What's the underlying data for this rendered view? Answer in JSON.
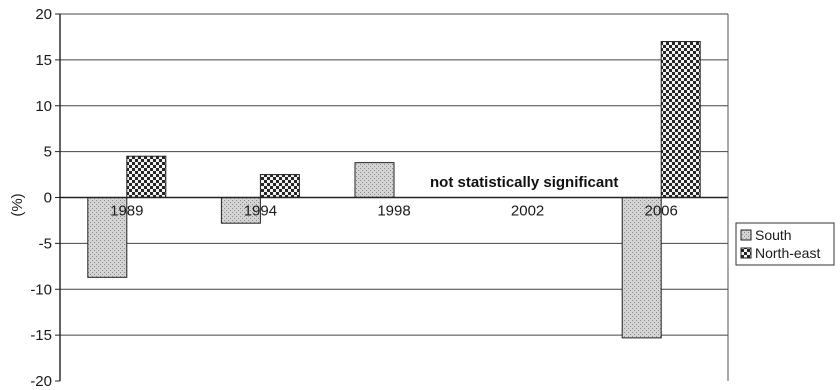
{
  "chart_data": {
    "type": "bar",
    "title": "",
    "xlabel": "",
    "ylabel": "(%)",
    "ylim": [
      -20,
      20
    ],
    "yticks": [
      -20,
      -15,
      -10,
      -5,
      0,
      5,
      10,
      15,
      20
    ],
    "grid": "horizontal",
    "legend": "right",
    "categories": [
      "1989",
      "1994",
      "1998",
      "2002",
      "2006"
    ],
    "series": [
      {
        "name": "South",
        "values": [
          -8.7,
          -2.8,
          3.8,
          null,
          -15.3
        ],
        "pattern": "light-stipple",
        "color": "#bdbdbd"
      },
      {
        "name": "North-east",
        "values": [
          4.5,
          2.5,
          null,
          null,
          17.0
        ],
        "pattern": "checkered",
        "color": "#2b2b2b"
      }
    ],
    "annotation": "not statistically significant"
  }
}
